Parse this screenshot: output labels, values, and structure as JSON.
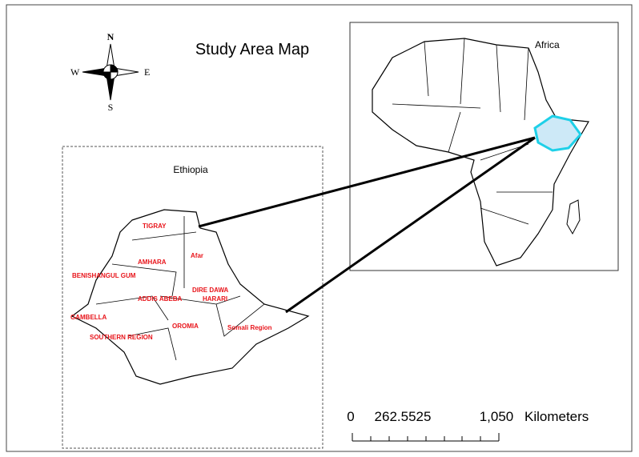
{
  "title": "Study Area Map",
  "compass": {
    "north": "N",
    "south": "S",
    "east": "E",
    "west": "W"
  },
  "africa_inset": {
    "label": "Africa"
  },
  "ethiopia_map": {
    "label": "Ethiopia",
    "regions": [
      "TIGRAY",
      "Afar",
      "AMHARA",
      "BENISHANGUL GUM",
      "DIRE DAWA",
      "HARARI",
      "ADDIS ABEBA",
      "GAMBELLA",
      "OROMIA",
      "SOUTHERN REGION",
      "Somali Region"
    ]
  },
  "scale_bar": {
    "ticks": [
      "0",
      "262.5525",
      "1,050"
    ],
    "unit": "Kilometers"
  }
}
